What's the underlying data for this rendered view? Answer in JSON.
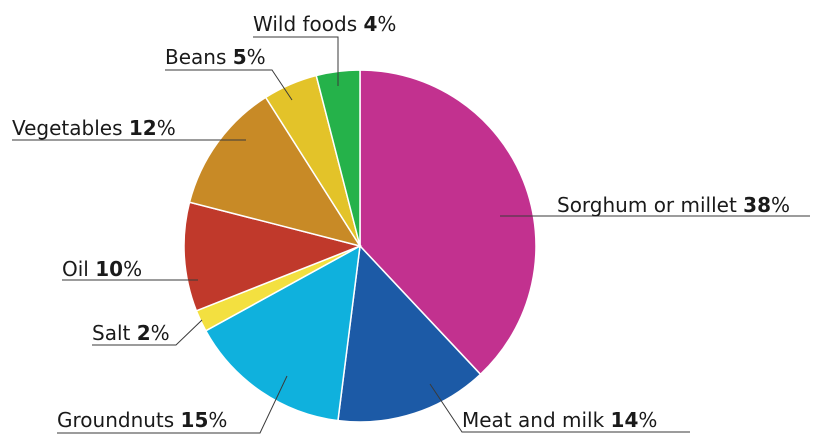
{
  "chart_data": {
    "type": "pie",
    "title": "",
    "unit": "%",
    "slices": [
      {
        "label": "Sorghum or millet",
        "value": 38,
        "color": "#c2318f"
      },
      {
        "label": "Meat and milk",
        "value": 14,
        "color": "#1c5aa6"
      },
      {
        "label": "Groundnuts",
        "value": 15,
        "color": "#0fb1dd"
      },
      {
        "label": "Salt",
        "value": 2,
        "color": "#f3e040"
      },
      {
        "label": "Oil",
        "value": 10,
        "color": "#c0392b"
      },
      {
        "label": "Vegetables",
        "value": 12,
        "color": "#c88a26"
      },
      {
        "label": "Beans",
        "value": 5,
        "color": "#e3c329"
      },
      {
        "label": "Wild foods",
        "value": 4,
        "color": "#25b24a"
      }
    ],
    "start_angle": "12 o'clock",
    "direction": "clockwise"
  }
}
